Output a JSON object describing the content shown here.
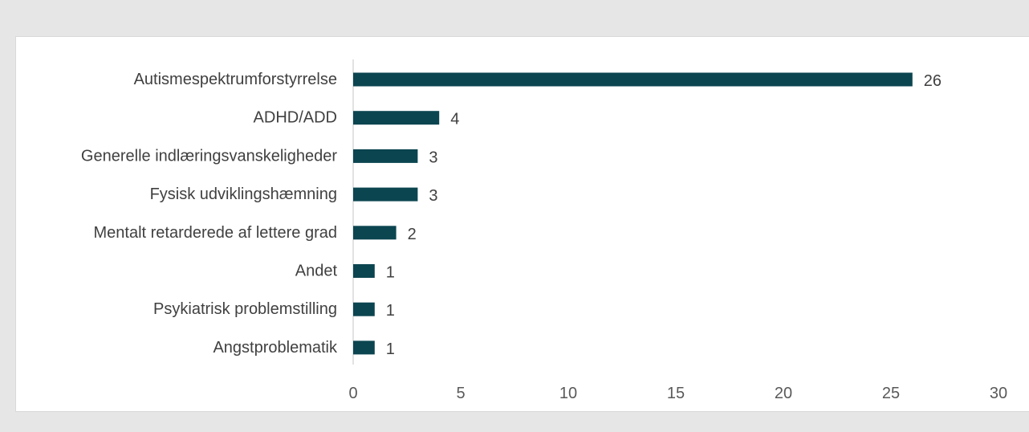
{
  "chart_data": {
    "type": "bar",
    "orientation": "horizontal",
    "categories": [
      "Autismespektrumforstyrrelse",
      "ADHD/ADD",
      "Generelle indlæringsvanskeligheder",
      "Fysisk udviklingshæmning",
      "Mentalt retarderede af lettere grad",
      "Andet",
      "Psykiatrisk problemstilling",
      "Angstproblematik"
    ],
    "values": [
      26,
      4,
      3,
      3,
      2,
      1,
      1,
      1
    ],
    "xlim": [
      0,
      30
    ],
    "xticks": [
      "0",
      "5",
      "10",
      "15",
      "20",
      "25",
      "30"
    ],
    "title": "",
    "xlabel": "",
    "ylabel": "",
    "grid": false,
    "legend": "none",
    "data_labels": true
  },
  "colors": {
    "bar": "#0b4550",
    "axis": "#d9d9d9",
    "background": "#e6e6e6",
    "panel": "#ffffff"
  }
}
